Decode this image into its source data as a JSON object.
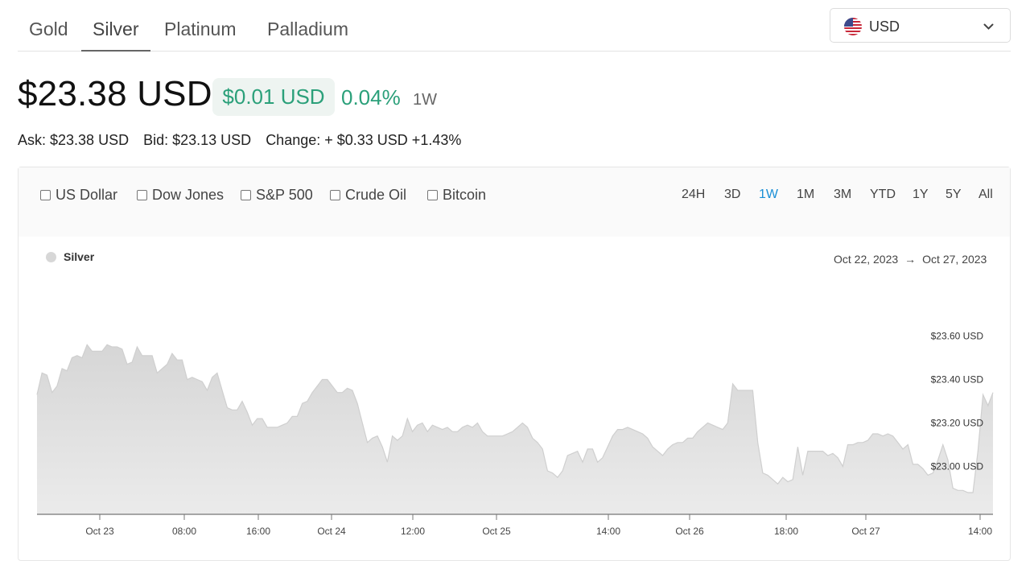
{
  "tabs": [
    {
      "label": "Gold",
      "active": false
    },
    {
      "label": "Silver",
      "active": true
    },
    {
      "label": "Platinum",
      "active": false
    },
    {
      "label": "Palladium",
      "active": false
    }
  ],
  "currency": {
    "code": "USD",
    "flag": "us-flag-icon"
  },
  "quote": {
    "price": "$23.38 USD",
    "change": "$0.01 USD",
    "change_pct": "0.04%",
    "period": "1W",
    "ask": "Ask: $23.38 USD",
    "bid": "Bid: $23.13 USD",
    "change_detail": "Change: + $0.33 USD +1.43%"
  },
  "compare": [
    "US Dollar",
    "Dow Jones",
    "S&P 500",
    "Crude Oil",
    "Bitcoin"
  ],
  "ranges": [
    {
      "label": "24H",
      "active": false
    },
    {
      "label": "3D",
      "active": false
    },
    {
      "label": "1W",
      "active": true
    },
    {
      "label": "1M",
      "active": false
    },
    {
      "label": "3M",
      "active": false
    },
    {
      "label": "YTD",
      "active": false
    },
    {
      "label": "1Y",
      "active": false
    },
    {
      "label": "5Y",
      "active": false
    },
    {
      "label": "All",
      "active": false
    }
  ],
  "chart_data": {
    "type": "area",
    "series": [
      {
        "name": "Silver",
        "values": [
          23.33,
          23.43,
          23.42,
          23.34,
          23.37,
          23.45,
          23.44,
          23.5,
          23.51,
          23.5,
          23.56,
          23.53,
          23.53,
          23.53,
          23.56,
          23.55,
          23.55,
          23.54,
          23.47,
          23.48,
          23.55,
          23.51,
          23.51,
          23.51,
          23.43,
          23.45,
          23.47,
          23.52,
          23.49,
          23.49,
          23.4,
          23.41,
          23.4,
          23.39,
          23.35,
          23.41,
          23.43,
          23.35,
          23.27,
          23.26,
          23.26,
          23.3,
          23.25,
          23.19,
          23.22,
          23.22,
          23.18,
          23.18,
          23.18,
          23.19,
          23.2,
          23.23,
          23.23,
          23.29,
          23.3,
          23.34,
          23.37,
          23.4,
          23.4,
          23.37,
          23.34,
          23.34,
          23.36,
          23.35,
          23.29,
          23.2,
          23.11,
          23.13,
          23.14,
          23.09,
          23.02,
          23.14,
          23.12,
          23.14,
          23.22,
          23.16,
          23.19,
          23.2,
          23.16,
          23.19,
          23.18,
          23.17,
          23.18,
          23.16,
          23.16,
          23.18,
          23.19,
          23.18,
          23.2,
          23.16,
          23.14,
          23.14,
          23.14,
          23.14,
          23.15,
          23.16,
          23.18,
          23.2,
          23.18,
          23.13,
          23.11,
          23.08,
          22.98,
          22.97,
          22.95,
          22.98,
          23.05,
          23.06,
          23.07,
          23.02,
          23.08,
          23.08,
          23.02,
          23.04,
          23.09,
          23.14,
          23.17,
          23.17,
          23.18,
          23.17,
          23.16,
          23.15,
          23.13,
          23.09,
          23.07,
          23.05,
          23.08,
          23.1,
          23.11,
          23.11,
          23.13,
          23.13,
          23.16,
          23.18,
          23.2,
          23.19,
          23.18,
          23.17,
          23.2,
          23.38,
          23.35,
          23.35,
          23.35,
          23.35,
          23.11,
          22.97,
          22.96,
          22.94,
          22.92,
          22.95,
          22.93,
          22.94,
          23.09,
          22.96,
          23.07,
          23.07,
          23.07,
          23.07,
          23.05,
          23.06,
          23.04,
          23.0,
          23.1,
          23.1,
          23.11,
          23.11,
          23.12,
          23.15,
          23.15,
          23.14,
          23.15,
          23.14,
          23.11,
          23.08,
          23.1,
          23.01,
          23.01,
          22.99,
          22.96,
          22.97,
          23.03,
          23.1,
          23.03,
          22.9,
          22.89,
          22.89,
          22.88,
          22.88,
          23.07,
          23.33,
          23.28,
          23.34
        ]
      }
    ],
    "y_ticks": [
      "$23.00 USD",
      "$23.20 USD",
      "$23.40 USD",
      "$23.60 USD"
    ],
    "y_tick_values": [
      23.0,
      23.2,
      23.4,
      23.6
    ],
    "ylim": [
      22.78,
      23.82
    ],
    "x_ticks": [
      "Oct 23",
      "08:00",
      "16:00",
      "Oct 24",
      "12:00",
      "Oct 25",
      "14:00",
      "Oct 26",
      "18:00",
      "Oct 27",
      "14:00"
    ],
    "range_start": "Oct 22, 2023",
    "range_end": "Oct 27, 2023",
    "range_arrow": "→",
    "legend": "top-left",
    "grid": false,
    "colors": {
      "area": "#dcdcdc",
      "line": "#cfcfcf",
      "legend_dot": "#d7d7d7",
      "positive": "#2ba07a",
      "active_range": "#1a8fd6"
    }
  }
}
